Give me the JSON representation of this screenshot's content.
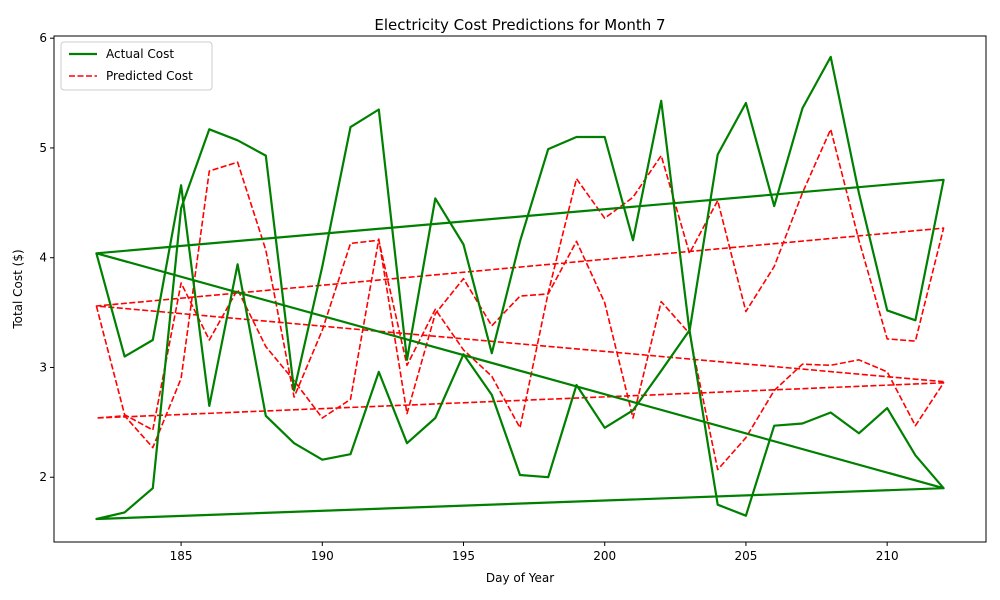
{
  "chart_data": {
    "type": "line",
    "title": "Electricity Cost Predictions for Month 7",
    "xlabel": "Day of Year",
    "ylabel": "Total Cost ($)",
    "xlim": [
      180.5,
      213.5
    ],
    "ylim": [
      1.41,
      6.02
    ],
    "x_ticks": [
      185,
      190,
      195,
      200,
      205,
      210
    ],
    "y_ticks": [
      2,
      3,
      4,
      5,
      6
    ],
    "grid": false,
    "legend_position": "upper left",
    "series": [
      {
        "name": "Actual Cost",
        "color": "#008000",
        "style": "solid",
        "points": [
          [
            182,
            4.04
          ],
          [
            183,
            3.1
          ],
          [
            184,
            3.25
          ],
          [
            185,
            4.66
          ],
          [
            186,
            2.65
          ],
          [
            187,
            3.94
          ],
          [
            188,
            2.56
          ],
          [
            189,
            2.31
          ],
          [
            190,
            2.16
          ],
          [
            191,
            2.21
          ],
          [
            192,
            2.96
          ],
          [
            193,
            2.31
          ],
          [
            194,
            2.54
          ],
          [
            195,
            3.12
          ],
          [
            196,
            2.75
          ],
          [
            197,
            2.02
          ],
          [
            198,
            2.0
          ],
          [
            199,
            2.84
          ],
          [
            200,
            2.45
          ],
          [
            201,
            2.61
          ],
          [
            202,
            2.97
          ],
          [
            203,
            3.34
          ],
          [
            204,
            1.75
          ],
          [
            205,
            1.65
          ],
          [
            206,
            2.47
          ],
          [
            207,
            2.49
          ],
          [
            208,
            2.59
          ],
          [
            209,
            2.4
          ],
          [
            210,
            2.63
          ],
          [
            211,
            2.2
          ],
          [
            212,
            1.9
          ],
          [
            182,
            1.62
          ],
          [
            183,
            1.68
          ],
          [
            184,
            1.9
          ],
          [
            185,
            4.45
          ],
          [
            186,
            5.17
          ],
          [
            187,
            5.07
          ],
          [
            188,
            4.93
          ],
          [
            189,
            2.79
          ],
          [
            190,
            3.92
          ],
          [
            191,
            5.19
          ],
          [
            192,
            5.35
          ],
          [
            193,
            3.07
          ],
          [
            194,
            4.54
          ],
          [
            195,
            4.12
          ],
          [
            196,
            3.13
          ],
          [
            197,
            4.15
          ],
          [
            198,
            4.99
          ],
          [
            199,
            5.1
          ],
          [
            200,
            5.1
          ],
          [
            201,
            4.16
          ],
          [
            202,
            5.43
          ],
          [
            203,
            3.33
          ],
          [
            204,
            4.94
          ],
          [
            205,
            5.41
          ],
          [
            206,
            4.47
          ],
          [
            207,
            5.36
          ],
          [
            208,
            5.83
          ],
          [
            209,
            4.59
          ],
          [
            210,
            3.52
          ],
          [
            211,
            3.43
          ],
          [
            212,
            4.71
          ],
          [
            182,
            4.04
          ],
          [
            212,
            1.9
          ]
        ]
      },
      {
        "name": "Predicted Cost",
        "color": "#ff0000",
        "style": "dashed",
        "points": [
          [
            182,
            3.56
          ],
          [
            183,
            2.57
          ],
          [
            184,
            2.43
          ],
          [
            185,
            3.77
          ],
          [
            186,
            3.25
          ],
          [
            187,
            3.71
          ],
          [
            188,
            3.19
          ],
          [
            189,
            2.88
          ],
          [
            190,
            2.54
          ],
          [
            191,
            2.71
          ],
          [
            192,
            4.17
          ],
          [
            193,
            2.58
          ],
          [
            194,
            3.49
          ],
          [
            195,
            3.81
          ],
          [
            196,
            3.38
          ],
          [
            197,
            3.65
          ],
          [
            198,
            3.67
          ],
          [
            199,
            4.15
          ],
          [
            200,
            3.59
          ],
          [
            201,
            2.54
          ],
          [
            202,
            3.6
          ],
          [
            203,
            3.31
          ],
          [
            204,
            2.07
          ],
          [
            205,
            2.36
          ],
          [
            206,
            2.79
          ],
          [
            207,
            3.03
          ],
          [
            208,
            3.02
          ],
          [
            209,
            3.07
          ],
          [
            210,
            2.96
          ],
          [
            211,
            2.47
          ],
          [
            212,
            2.86
          ],
          [
            182,
            2.54
          ],
          [
            183,
            2.56
          ],
          [
            184,
            2.27
          ],
          [
            185,
            2.9
          ],
          [
            186,
            4.79
          ],
          [
            187,
            4.87
          ],
          [
            188,
            4.07
          ],
          [
            189,
            2.73
          ],
          [
            190,
            3.34
          ],
          [
            191,
            4.13
          ],
          [
            192,
            4.16
          ],
          [
            193,
            3.02
          ],
          [
            194,
            3.53
          ],
          [
            195,
            3.16
          ],
          [
            196,
            2.92
          ],
          [
            197,
            2.45
          ],
          [
            198,
            3.68
          ],
          [
            199,
            4.72
          ],
          [
            200,
            4.36
          ],
          [
            201,
            4.55
          ],
          [
            202,
            4.93
          ],
          [
            203,
            4.04
          ],
          [
            204,
            4.52
          ],
          [
            205,
            3.51
          ],
          [
            206,
            3.92
          ],
          [
            207,
            4.59
          ],
          [
            208,
            5.17
          ],
          [
            209,
            4.16
          ],
          [
            210,
            3.26
          ],
          [
            211,
            3.24
          ],
          [
            212,
            4.27
          ],
          [
            182,
            3.56
          ],
          [
            212,
            2.87
          ]
        ]
      }
    ]
  }
}
